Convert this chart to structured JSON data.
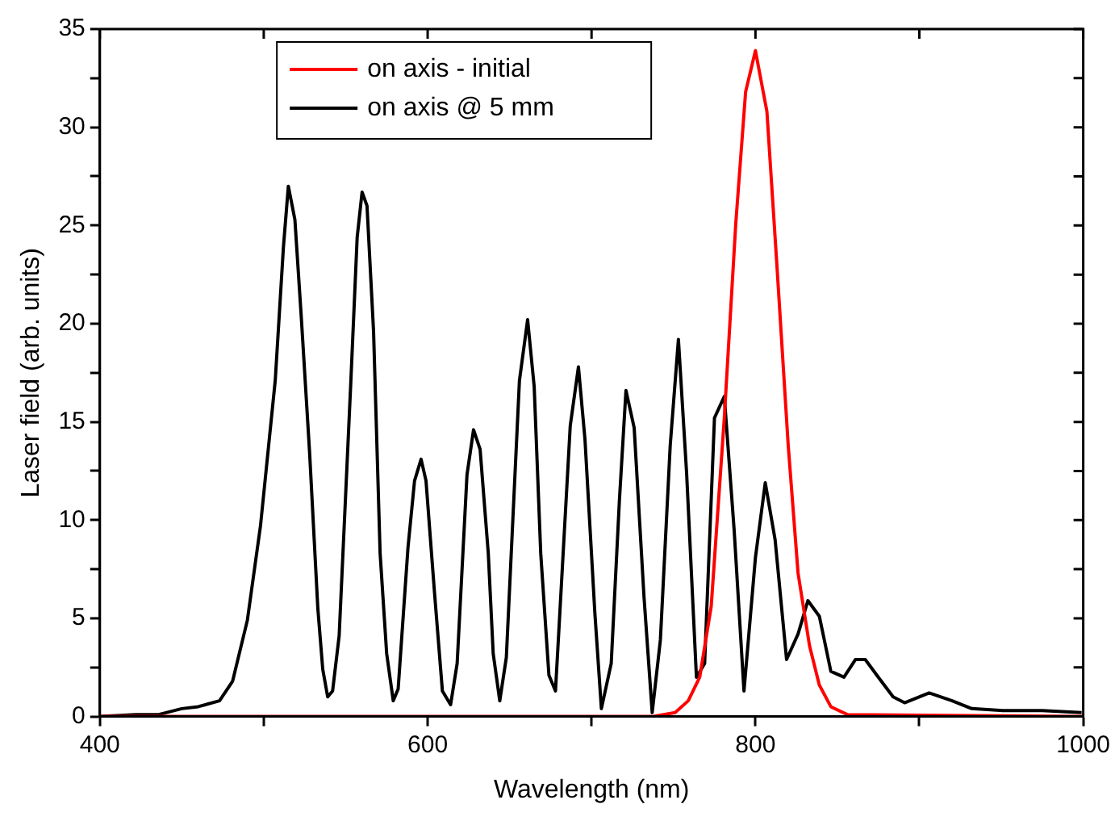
{
  "chart_data": {
    "type": "line",
    "xlabel": "Wavelength (nm)",
    "ylabel": "Laser field (arb. units)",
    "xlim": [
      400,
      1000
    ],
    "xticks": [
      400,
      {
        "value": 500,
        "label": null
      },
      600,
      {
        "value": 700,
        "label": null
      },
      800,
      {
        "value": 900,
        "label": null
      },
      1000
    ],
    "ylim": [
      0,
      35
    ],
    "yticks": [
      0,
      {
        "value": 2.5,
        "label": null
      },
      5,
      {
        "value": 7.5,
        "label": null
      },
      10,
      {
        "value": 12.5,
        "label": null
      },
      15,
      {
        "value": 17.5,
        "label": null
      },
      20,
      {
        "value": 22.5,
        "label": null
      },
      25,
      {
        "value": 27.5,
        "label": null
      },
      30,
      {
        "value": 32.5,
        "label": null
      },
      35
    ],
    "grid": false,
    "legend": "top",
    "marker": "none",
    "line_style": "solid",
    "series": [
      {
        "name": "on axis - initial",
        "color": "#ff0000",
        "x": [
          400,
          688,
          737,
          751,
          759,
          766,
          773,
          781,
          788,
          794,
          800,
          807,
          813,
          820,
          826,
          833,
          839,
          846,
          856,
          1000
        ],
        "values": [
          0,
          0,
          0,
          0.2,
          0.8,
          2,
          5.6,
          15.2,
          25.1,
          31.8,
          33.9,
          30.8,
          23.1,
          13.8,
          7.3,
          3.6,
          1.6,
          0.5,
          0.1,
          0
        ]
      },
      {
        "name": "on axis @ 5 mm",
        "color": "#000000",
        "x": [
          400,
          422,
          436,
          450,
          460,
          473,
          481,
          490,
          498,
          507,
          512,
          515,
          519,
          523,
          528,
          533,
          536,
          539,
          542,
          546,
          553,
          557,
          560,
          563,
          567,
          571,
          575,
          579,
          582,
          588,
          592,
          596,
          599,
          604,
          609,
          614,
          618,
          624,
          628,
          632,
          637,
          640,
          644,
          648,
          656,
          661,
          665,
          669,
          674,
          678,
          687,
          692,
          696,
          702,
          706,
          712,
          717,
          721,
          726,
          732,
          737,
          742,
          748,
          753,
          758,
          764,
          769,
          775,
          781,
          787,
          793,
          800,
          806,
          812,
          819,
          826,
          832,
          839,
          846,
          854,
          861,
          867,
          875,
          884,
          891,
          906,
          920,
          932,
          951,
          975,
          999
        ],
        "values": [
          0,
          0.1,
          0.1,
          0.4,
          0.5,
          0.8,
          1.8,
          4.9,
          9.7,
          17.1,
          23.9,
          27,
          25.3,
          20.2,
          13.4,
          5.5,
          2.4,
          1,
          1.3,
          4.1,
          16.8,
          24.4,
          26.7,
          26,
          19.6,
          8.3,
          3.2,
          0.8,
          1.4,
          8.6,
          12,
          13.1,
          12,
          6.5,
          1.3,
          0.6,
          2.7,
          12.3,
          14.6,
          13.6,
          8.3,
          3.2,
          0.8,
          3,
          17.1,
          20.2,
          16.8,
          8.3,
          2.1,
          1.3,
          14.8,
          17.8,
          14.1,
          5.3,
          0.4,
          2.7,
          11,
          16.6,
          14.7,
          6.1,
          0.2,
          3.9,
          13.8,
          19.2,
          12.4,
          2,
          2.7,
          15.2,
          16.3,
          9.5,
          1.3,
          8.1,
          11.9,
          9,
          2.9,
          4.2,
          5.9,
          5.1,
          2.3,
          2,
          2.9,
          2.9,
          2,
          1,
          0.7,
          1.2,
          0.8,
          0.4,
          0.3,
          0.3,
          0.2
        ]
      }
    ]
  }
}
